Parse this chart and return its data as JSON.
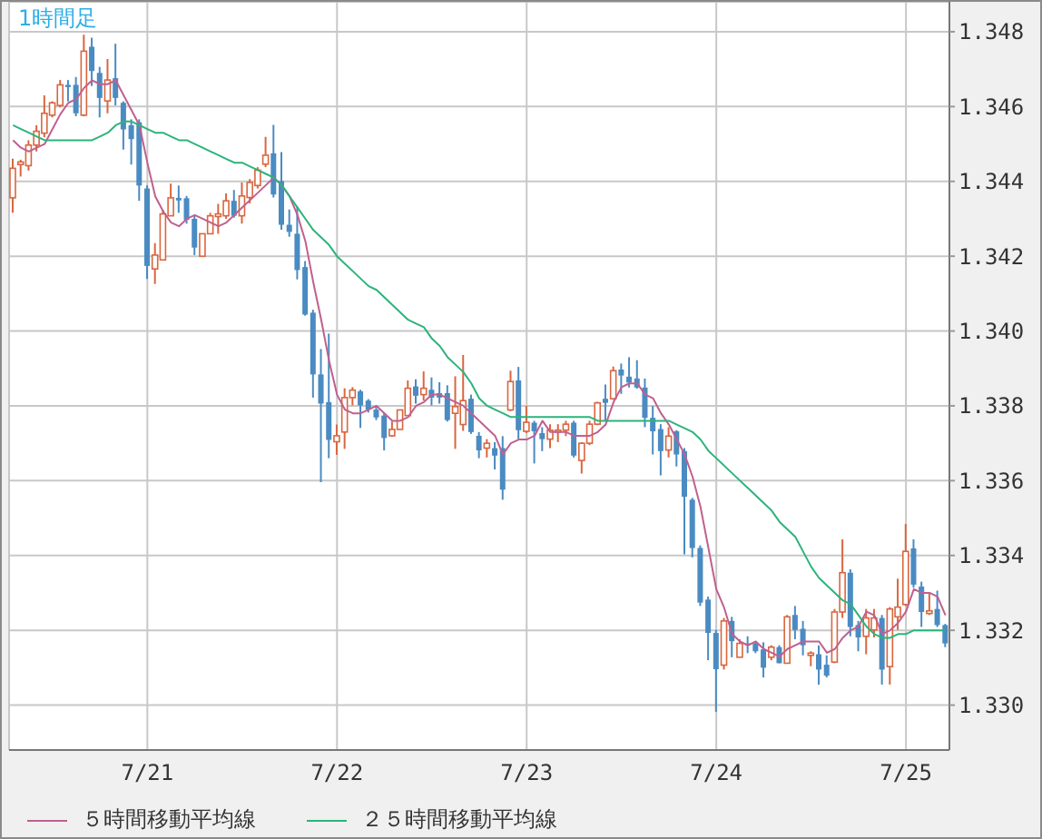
{
  "chart_data": {
    "type": "candlestick",
    "title": "1時間足",
    "categories": [
      null,
      null,
      null,
      null,
      null,
      null,
      null,
      null,
      null,
      null,
      null,
      null,
      null,
      null,
      null,
      null,
      null,
      "7/21",
      null,
      null,
      null,
      null,
      null,
      null,
      null,
      null,
      null,
      null,
      null,
      null,
      null,
      null,
      null,
      null,
      null,
      null,
      null,
      null,
      null,
      null,
      null,
      "7/22",
      null,
      null,
      null,
      null,
      null,
      null,
      null,
      null,
      null,
      null,
      null,
      null,
      null,
      null,
      null,
      null,
      null,
      null,
      null,
      null,
      null,
      null,
      null,
      "7/23",
      null,
      null,
      null,
      null,
      null,
      null,
      null,
      null,
      null,
      null,
      null,
      null,
      null,
      null,
      null,
      null,
      null,
      null,
      null,
      null,
      null,
      null,
      null,
      "7/24",
      null,
      null,
      null,
      null,
      null,
      null,
      null,
      null,
      null,
      null,
      null,
      null,
      null,
      null,
      null,
      null,
      null,
      null,
      null,
      null,
      null,
      null,
      null,
      "7/25",
      null,
      null,
      null,
      null,
      null
    ],
    "ohlc": [
      [
        1.34356,
        1.34461,
        1.34316,
        1.34435
      ],
      [
        1.34445,
        1.34458,
        1.34413,
        1.34452
      ],
      [
        1.34442,
        1.3451,
        1.34429,
        1.34497
      ],
      [
        1.34497,
        1.3455,
        1.3448,
        1.34534
      ],
      [
        1.34529,
        1.3463,
        1.34518,
        1.34582
      ],
      [
        1.34577,
        1.34614,
        1.34571,
        1.3461
      ],
      [
        1.34603,
        1.34671,
        1.34598,
        1.34658
      ],
      [
        1.34658,
        1.34671,
        1.34614,
        1.34652
      ],
      [
        1.34658,
        1.34679,
        1.34574,
        1.34582
      ],
      [
        1.34577,
        1.34792,
        1.34574,
        1.34748
      ],
      [
        1.3476,
        1.34784,
        1.34655,
        1.34695
      ],
      [
        1.3469,
        1.34706,
        1.34571,
        1.34623
      ],
      [
        1.34615,
        1.34727,
        1.34582,
        1.34671
      ],
      [
        1.34676,
        1.34768,
        1.34603,
        1.34623
      ],
      [
        1.3461,
        1.34614,
        1.34485,
        1.34539
      ],
      [
        1.3455,
        1.34566,
        1.34445,
        1.34513
      ],
      [
        1.34558,
        1.34566,
        1.34348,
        1.34389
      ],
      [
        1.34381,
        1.34389,
        1.34139,
        1.34174
      ],
      [
        1.34166,
        1.34235,
        1.34126,
        1.34203
      ],
      [
        1.3419,
        1.34324,
        1.3419,
        1.34313
      ],
      [
        1.34308,
        1.34394,
        1.34308,
        1.34356
      ],
      [
        1.34356,
        1.34389,
        1.34316,
        1.34349
      ],
      [
        1.34355,
        1.34361,
        1.34287,
        1.34297
      ],
      [
        1.343,
        1.34308,
        1.34203,
        1.34223
      ],
      [
        1.342,
        1.3426,
        1.342,
        1.3426
      ],
      [
        1.3426,
        1.34316,
        1.3426,
        1.34308
      ],
      [
        1.34306,
        1.3434,
        1.3426,
        1.34313
      ],
      [
        1.34308,
        1.34368,
        1.343,
        1.34348
      ],
      [
        1.34348,
        1.34377,
        1.34303,
        1.34308
      ],
      [
        1.34308,
        1.34397,
        1.34287,
        1.34361
      ],
      [
        1.34357,
        1.34406,
        1.34341,
        1.34397
      ],
      [
        1.34389,
        1.34438,
        1.34381,
        1.3443
      ],
      [
        1.34446,
        1.34519,
        1.34438,
        1.3447
      ],
      [
        1.34475,
        1.34551,
        1.34357,
        1.34365
      ],
      [
        1.34401,
        1.34478,
        1.34271,
        1.34284
      ],
      [
        1.34284,
        1.34325,
        1.34252,
        1.34265
      ],
      [
        1.3426,
        1.34333,
        1.34138,
        1.34163
      ],
      [
        1.34171,
        1.34187,
        1.34041,
        1.34044
      ],
      [
        1.34049,
        1.34057,
        1.33822,
        1.33884
      ],
      [
        1.33884,
        1.33952,
        1.33596,
        1.33806
      ],
      [
        1.3381,
        1.33993,
        1.3366,
        1.33709
      ],
      [
        1.33704,
        1.3375,
        1.33669,
        1.3372
      ],
      [
        1.3373,
        1.33847,
        1.33685,
        1.33822
      ],
      [
        1.33822,
        1.3385,
        1.33801,
        1.33842
      ],
      [
        1.33839,
        1.33843,
        1.33741,
        1.33801
      ],
      [
        1.33814,
        1.33818,
        1.33782,
        1.3379
      ],
      [
        1.3379,
        1.33801,
        1.33762,
        1.33769
      ],
      [
        1.33774,
        1.33782,
        1.33681,
        1.33714
      ],
      [
        1.3372,
        1.33758,
        1.33717,
        1.33737
      ],
      [
        1.33737,
        1.3379,
        1.33737,
        1.33789
      ],
      [
        1.33774,
        1.33868,
        1.33774,
        1.33847
      ],
      [
        1.33852,
        1.33871,
        1.33806,
        1.33827
      ],
      [
        1.3383,
        1.33892,
        1.33814,
        1.33847
      ],
      [
        1.33843,
        1.33876,
        1.33801,
        1.33822
      ],
      [
        1.33834,
        1.33863,
        1.33806,
        1.33822
      ],
      [
        1.33834,
        1.33855,
        1.33758,
        1.33762
      ],
      [
        1.3378,
        1.33879,
        1.33685,
        1.33798
      ],
      [
        1.3375,
        1.33936,
        1.33733,
        1.33814
      ],
      [
        1.33819,
        1.3383,
        1.33725,
        1.3373
      ],
      [
        1.3372,
        1.3373,
        1.3366,
        1.33681
      ],
      [
        1.33687,
        1.33711,
        1.33662,
        1.337
      ],
      [
        1.33687,
        1.33703,
        1.3363,
        1.33667
      ],
      [
        1.33687,
        1.33719,
        1.33549,
        1.33576
      ],
      [
        1.33789,
        1.33894,
        1.33786,
        1.33865
      ],
      [
        1.33868,
        1.33904,
        1.33711,
        1.33735
      ],
      [
        1.33732,
        1.338,
        1.33727,
        1.33756
      ],
      [
        1.33755,
        1.3376,
        1.33646,
        1.33732
      ],
      [
        1.33727,
        1.33743,
        1.33679,
        1.33711
      ],
      [
        1.33711,
        1.33751,
        1.33687,
        1.33735
      ],
      [
        1.33732,
        1.33751,
        1.33703,
        1.33735
      ],
      [
        1.33735,
        1.3376,
        1.33719,
        1.33751
      ],
      [
        1.33755,
        1.3376,
        1.33662,
        1.33667
      ],
      [
        1.33654,
        1.33703,
        1.33619,
        1.337
      ],
      [
        1.337,
        1.3376,
        1.33695,
        1.33751
      ],
      [
        1.33751,
        1.33811,
        1.33748,
        1.33808
      ],
      [
        1.33819,
        1.33857,
        1.3376,
        1.33808
      ],
      [
        1.33819,
        1.33905,
        1.33816,
        1.33894
      ],
      [
        1.33897,
        1.33913,
        1.33832,
        1.33881
      ],
      [
        1.33878,
        1.3393,
        1.33849,
        1.33862
      ],
      [
        1.33873,
        1.33922,
        1.33846,
        1.33849
      ],
      [
        1.33849,
        1.33873,
        1.33743,
        1.33768
      ],
      [
        1.33768,
        1.338,
        1.3367,
        1.33732
      ],
      [
        1.33738,
        1.33751,
        1.33614,
        1.33679
      ],
      [
        1.33682,
        1.33743,
        1.33662,
        1.33719
      ],
      [
        1.33732,
        1.33735,
        1.33638,
        1.3367
      ],
      [
        1.33679,
        1.33687,
        1.33403,
        1.33557
      ],
      [
        1.33549,
        1.33554,
        1.33395,
        1.3342
      ],
      [
        1.3342,
        1.33427,
        1.33265,
        1.33274
      ],
      [
        1.33282,
        1.3329,
        1.3312,
        1.33193
      ],
      [
        1.33193,
        1.33201,
        1.32982,
        1.33096
      ],
      [
        1.33107,
        1.33233,
        1.33095,
        1.33225
      ],
      [
        1.33225,
        1.33236,
        1.33128,
        1.33171
      ],
      [
        1.33128,
        1.33176,
        1.33128,
        1.33165
      ],
      [
        1.33165,
        1.33184,
        1.33139,
        1.3316
      ],
      [
        1.33165,
        1.33171,
        1.33139,
        1.33144
      ],
      [
        1.33149,
        1.33168,
        1.33074,
        1.331
      ],
      [
        1.33128,
        1.3316,
        1.3312,
        1.33155
      ],
      [
        1.33155,
        1.3316,
        1.33112,
        1.33112
      ],
      [
        1.33112,
        1.33241,
        1.33112,
        1.33236
      ],
      [
        1.33241,
        1.33265,
        1.33176,
        1.33201
      ],
      [
        1.33204,
        1.33225,
        1.33133,
        1.3316
      ],
      [
        1.33133,
        1.33144,
        1.33104,
        1.33139
      ],
      [
        1.33136,
        1.3316,
        1.33055,
        1.33095
      ],
      [
        1.33108,
        1.33133,
        1.33074,
        1.33079
      ],
      [
        1.33115,
        1.33257,
        1.33112,
        1.33249
      ],
      [
        1.33249,
        1.33443,
        1.33233,
        1.33354
      ],
      [
        1.33354,
        1.33363,
        1.33184,
        1.33209
      ],
      [
        1.33214,
        1.33225,
        1.33144,
        1.33181
      ],
      [
        1.33184,
        1.33257,
        1.33136,
        1.33233
      ],
      [
        1.33201,
        1.33257,
        1.33181,
        1.33233
      ],
      [
        1.33233,
        1.33241,
        1.33055,
        1.33095
      ],
      [
        1.33103,
        1.33262,
        1.33055,
        1.33257
      ],
      [
        1.33236,
        1.33338,
        1.33201,
        1.33262
      ],
      [
        1.33269,
        1.33484,
        1.33265,
        1.33411
      ],
      [
        1.33419,
        1.33443,
        1.33314,
        1.33322
      ],
      [
        1.33317,
        1.3333,
        1.33209,
        1.33249
      ],
      [
        1.33245,
        1.33298,
        1.33241,
        1.33252
      ],
      [
        1.33257,
        1.33306,
        1.33209,
        1.33214
      ],
      [
        1.33214,
        1.33217,
        1.33155,
        1.33165
      ]
    ],
    "colors": [
      "#d9663f",
      "#d9663f",
      "#d9663f",
      "#d9663f",
      "#d9663f",
      "#d9663f",
      "#d9663f",
      "#4a8bc2",
      "#4a8bc2",
      "#d9663f",
      "#4a8bc2",
      "#4a8bc2",
      "#d9663f",
      "#4a8bc2",
      "#4a8bc2",
      "#4a8bc2",
      "#4a8bc2",
      "#4a8bc2",
      "#d9663f",
      "#d9663f",
      "#d9663f",
      "#4a8bc2",
      "#4a8bc2",
      "#4a8bc2",
      "#d9663f",
      "#d9663f",
      "#d9663f",
      "#d9663f",
      "#4a8bc2",
      "#d9663f",
      "#d9663f",
      "#d9663f",
      "#d9663f",
      "#4a8bc2",
      "#4a8bc2",
      "#4a8bc2",
      "#4a8bc2",
      "#4a8bc2",
      "#4a8bc2",
      "#4a8bc2",
      "#4a8bc2",
      "#d9663f",
      "#d9663f",
      "#d9663f",
      "#4a8bc2",
      "#4a8bc2",
      "#4a8bc2",
      "#4a8bc2",
      "#d9663f",
      "#d9663f",
      "#d9663f",
      "#4a8bc2",
      "#d9663f",
      "#4a8bc2",
      "#4a8bc2",
      "#4a8bc2",
      "#d9663f",
      "#d9663f",
      "#4a8bc2",
      "#4a8bc2",
      "#d9663f",
      "#4a8bc2",
      "#4a8bc2",
      "#d9663f",
      "#4a8bc2",
      "#d9663f",
      "#4a8bc2",
      "#4a8bc2",
      "#d9663f",
      "#d9663f",
      "#d9663f",
      "#4a8bc2",
      "#d9663f",
      "#d9663f",
      "#d9663f",
      "#4a8bc2",
      "#d9663f",
      "#4a8bc2",
      "#4a8bc2",
      "#4a8bc2",
      "#4a8bc2",
      "#4a8bc2",
      "#4a8bc2",
      "#d9663f",
      "#4a8bc2",
      "#4a8bc2",
      "#4a8bc2",
      "#4a8bc2",
      "#4a8bc2",
      "#4a8bc2",
      "#d9663f",
      "#4a8bc2",
      "#d9663f",
      "#4a8bc2",
      "#4a8bc2",
      "#4a8bc2",
      "#d9663f",
      "#4a8bc2",
      "#d9663f",
      "#4a8bc2",
      "#4a8bc2",
      "#d9663f",
      "#4a8bc2",
      "#4a8bc2",
      "#d9663f",
      "#d9663f",
      "#4a8bc2",
      "#4a8bc2",
      "#d9663f",
      "#d9663f",
      "#4a8bc2",
      "#d9663f",
      "#d9663f",
      "#d9663f",
      "#4a8bc2",
      "#4a8bc2",
      "#d9663f",
      "#4a8bc2",
      "#4a8bc2"
    ],
    "series": [
      {
        "name": "５時間移動平均線",
        "type": "line",
        "color": "#c0608f",
        "values": [
          1.3451,
          1.3449,
          1.3448,
          1.3449,
          1.345,
          1.3454,
          1.3458,
          1.3461,
          1.3462,
          1.3465,
          1.3467,
          1.3466,
          1.3466,
          1.3467,
          1.3463,
          1.3459,
          1.3455,
          1.3445,
          1.3436,
          1.3432,
          1.3429,
          1.3428,
          1.343,
          1.3431,
          1.343,
          1.3429,
          1.3428,
          1.3429,
          1.3431,
          1.3433,
          1.3435,
          1.3437,
          1.3439,
          1.3441,
          1.3439,
          1.3436,
          1.3431,
          1.3424,
          1.3413,
          1.3403,
          1.3392,
          1.3383,
          1.3379,
          1.3378,
          1.3378,
          1.3379,
          1.338,
          1.3378,
          1.3376,
          1.3376,
          1.3377,
          1.338,
          1.3381,
          1.3383,
          1.3383,
          1.3382,
          1.3381,
          1.338,
          1.3378,
          1.3376,
          1.3374,
          1.3372,
          1.3367,
          1.337,
          1.3371,
          1.3371,
          1.3372,
          1.3376,
          1.3373,
          1.3373,
          1.3373,
          1.3372,
          1.3372,
          1.3372,
          1.3373,
          1.3375,
          1.3381,
          1.3385,
          1.3386,
          1.3386,
          1.3383,
          1.3382,
          1.3378,
          1.3375,
          1.3371,
          1.3367,
          1.3361,
          1.3353,
          1.3342,
          1.3331,
          1.3326,
          1.3319,
          1.3317,
          1.3316,
          1.3317,
          1.3315,
          1.3314,
          1.3313,
          1.3315,
          1.3316,
          1.3317,
          1.3317,
          1.3317,
          1.3314,
          1.3315,
          1.3318,
          1.332,
          1.3321,
          1.3325,
          1.3324,
          1.3319,
          1.332,
          1.3322,
          1.3325,
          1.3331,
          1.333,
          1.333,
          1.3329,
          1.3324
        ]
      },
      {
        "name": "２５時間移動平均線",
        "type": "line",
        "color": "#2bb47a",
        "values": [
          1.3455,
          1.3454,
          1.3453,
          1.3452,
          1.3451,
          1.3451,
          1.3451,
          1.3451,
          1.3451,
          1.3451,
          1.3451,
          1.3452,
          1.3453,
          1.3455,
          1.3456,
          1.3456,
          1.3455,
          1.3454,
          1.3453,
          1.3453,
          1.3452,
          1.3451,
          1.3451,
          1.345,
          1.3449,
          1.3448,
          1.3447,
          1.3446,
          1.3445,
          1.3445,
          1.3444,
          1.3443,
          1.3442,
          1.3441,
          1.3439,
          1.3436,
          1.3433,
          1.343,
          1.3427,
          1.3425,
          1.3423,
          1.342,
          1.3418,
          1.3416,
          1.3414,
          1.3412,
          1.3411,
          1.3409,
          1.3407,
          1.3405,
          1.3403,
          1.3402,
          1.3401,
          1.3398,
          1.3396,
          1.3393,
          1.3391,
          1.3389,
          1.3386,
          1.3382,
          1.338,
          1.3379,
          1.3378,
          1.3377,
          1.3377,
          1.3377,
          1.3377,
          1.3377,
          1.3377,
          1.3377,
          1.3377,
          1.3377,
          1.3377,
          1.3377,
          1.3376,
          1.3376,
          1.3376,
          1.3376,
          1.3376,
          1.3376,
          1.3376,
          1.3376,
          1.3376,
          1.3376,
          1.3375,
          1.3374,
          1.3373,
          1.3371,
          1.3368,
          1.3366,
          1.3364,
          1.3362,
          1.336,
          1.3358,
          1.3356,
          1.3354,
          1.3352,
          1.3349,
          1.3347,
          1.3345,
          1.3341,
          1.3337,
          1.3334,
          1.3332,
          1.333,
          1.3328,
          1.3327,
          1.3324,
          1.3321,
          1.3319,
          1.3318,
          1.3318,
          1.3319,
          1.3319,
          1.332,
          1.332,
          1.332,
          1.332,
          1.332
        ]
      }
    ],
    "ylim": [
      1.3288,
      1.3488
    ],
    "yticks": [
      {
        "value": 1.33,
        "label": "1.330"
      },
      {
        "value": 1.332,
        "label": "1.332"
      },
      {
        "value": 1.334,
        "label": "1.334"
      },
      {
        "value": 1.336,
        "label": "1.336"
      },
      {
        "value": 1.338,
        "label": "1.338"
      },
      {
        "value": 1.34,
        "label": "1.340"
      },
      {
        "value": 1.342,
        "label": "1.342"
      },
      {
        "value": 1.344,
        "label": "1.344"
      },
      {
        "value": 1.346,
        "label": "1.346"
      },
      {
        "value": 1.348,
        "label": "1.348"
      }
    ],
    "grid": true,
    "legend": "bottom",
    "marker": "none"
  }
}
